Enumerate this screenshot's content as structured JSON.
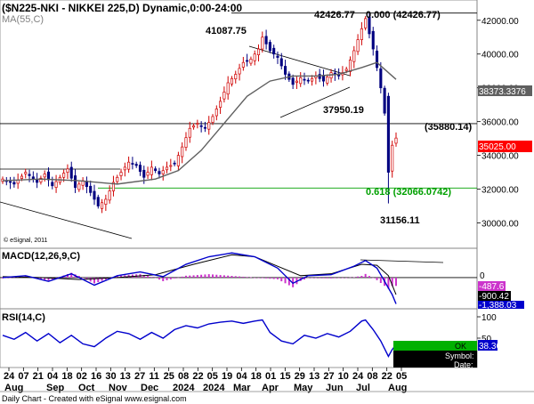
{
  "chart_data": {
    "type": "candlestick",
    "title": "($N225-NKI - NIKKEI 225,D) Dynamic,0:00-24:00",
    "ma_label": "MA(55,C)",
    "copyright": "© eSignal, 2011",
    "footer": "Daily Chart - Created with eSignal  www.esignal.com",
    "price_axis": {
      "ylim": [
        28500,
        43200
      ],
      "ticks": [
        "42000.00",
        "40000.00",
        "38000.00",
        "36000.00",
        "34000.00",
        "32000.00",
        "30000.00"
      ],
      "tick_values": [
        42000,
        40000,
        38000,
        36000,
        34000,
        32000,
        30000
      ]
    },
    "x_axis": {
      "day_labels": [
        "24",
        "07",
        "21",
        "04",
        "18",
        "02",
        "16",
        "30",
        "13",
        "27",
        "11",
        "25",
        "08",
        "22",
        "05",
        "19",
        "04",
        "18",
        "01",
        "15",
        "29",
        "13",
        "27",
        "10",
        "24",
        "08",
        "22",
        "05"
      ],
      "month_labels": [
        "Aug",
        "Sep",
        "Oct",
        "Nov",
        "Dec",
        "2024",
        "2024",
        "Mar",
        "Apr",
        "May",
        "Jun",
        "Jul",
        "Aug"
      ]
    },
    "close_points": [
      {
        "x": 0,
        "y": 32600
      },
      {
        "x": 3,
        "y": 32300
      },
      {
        "x": 6,
        "y": 33000
      },
      {
        "x": 9,
        "y": 32400
      },
      {
        "x": 11,
        "y": 32900
      },
      {
        "x": 13,
        "y": 32200
      },
      {
        "x": 15,
        "y": 32700
      },
      {
        "x": 17,
        "y": 33200
      },
      {
        "x": 19,
        "y": 32100
      },
      {
        "x": 21,
        "y": 32500
      },
      {
        "x": 23,
        "y": 31800
      },
      {
        "x": 25,
        "y": 31000
      },
      {
        "x": 27,
        "y": 31400
      },
      {
        "x": 29,
        "y": 32400
      },
      {
        "x": 31,
        "y": 33000
      },
      {
        "x": 33,
        "y": 33600
      },
      {
        "x": 35,
        "y": 33400
      },
      {
        "x": 37,
        "y": 32700
      },
      {
        "x": 39,
        "y": 33300
      },
      {
        "x": 41,
        "y": 32900
      },
      {
        "x": 43,
        "y": 33300
      },
      {
        "x": 45,
        "y": 33500
      },
      {
        "x": 47,
        "y": 34500
      },
      {
        "x": 49,
        "y": 35600
      },
      {
        "x": 51,
        "y": 35900
      },
      {
        "x": 53,
        "y": 35600
      },
      {
        "x": 55,
        "y": 36300
      },
      {
        "x": 57,
        "y": 37200
      },
      {
        "x": 59,
        "y": 38300
      },
      {
        "x": 61,
        "y": 38800
      },
      {
        "x": 63,
        "y": 39500
      },
      {
        "x": 65,
        "y": 39700
      },
      {
        "x": 67,
        "y": 40300
      },
      {
        "x": 68,
        "y": 41000
      },
      {
        "x": 70,
        "y": 40200
      },
      {
        "x": 72,
        "y": 39800
      },
      {
        "x": 74,
        "y": 38800
      },
      {
        "x": 76,
        "y": 38200
      },
      {
        "x": 78,
        "y": 38600
      },
      {
        "x": 80,
        "y": 38400
      },
      {
        "x": 82,
        "y": 38700
      },
      {
        "x": 84,
        "y": 38400
      },
      {
        "x": 86,
        "y": 38900
      },
      {
        "x": 88,
        "y": 38700
      },
      {
        "x": 90,
        "y": 39100
      },
      {
        "x": 92,
        "y": 40200
      },
      {
        "x": 94,
        "y": 41500
      },
      {
        "x": 95,
        "y": 42100
      },
      {
        "x": 96,
        "y": 41200
      },
      {
        "x": 97,
        "y": 40300
      },
      {
        "x": 98,
        "y": 39200
      },
      {
        "x": 99,
        "y": 38000
      },
      {
        "x": 100,
        "y": 36500
      },
      {
        "x": 101,
        "y": 33000
      },
      {
        "x": 102,
        "y": 34600
      },
      {
        "x": 103,
        "y": 35025
      }
    ],
    "ma_points": [
      {
        "x": 0,
        "y": 32500
      },
      {
        "x": 10,
        "y": 32600
      },
      {
        "x": 20,
        "y": 32500
      },
      {
        "x": 30,
        "y": 32300
      },
      {
        "x": 40,
        "y": 32600
      },
      {
        "x": 46,
        "y": 33100
      },
      {
        "x": 52,
        "y": 34300
      },
      {
        "x": 58,
        "y": 35900
      },
      {
        "x": 64,
        "y": 37500
      },
      {
        "x": 70,
        "y": 38400
      },
      {
        "x": 76,
        "y": 38700
      },
      {
        "x": 82,
        "y": 38700
      },
      {
        "x": 88,
        "y": 38800
      },
      {
        "x": 94,
        "y": 39200
      },
      {
        "x": 98,
        "y": 39500
      },
      {
        "x": 100,
        "y": 39100
      },
      {
        "x": 103,
        "y": 38500
      }
    ],
    "levels": [
      {
        "label": "0.000 (42426.77)",
        "value": 42426.77
      },
      {
        "label": "(35880.14)",
        "value": 35880.14
      },
      {
        "label": "0.618 (32066.0742)",
        "value": 32066.0742
      }
    ],
    "annotations": [
      "42426.77",
      "41087.75",
      "37950.19",
      "31156.11"
    ],
    "last_price_labels": [
      "38373.3376",
      "35025.00"
    ],
    "macd": {
      "label": "MACD(12,26,9,C)",
      "ylim": [
        -1600,
        1500
      ],
      "zero_label": "0",
      "value_labels": [
        "-487.6",
        "-900.42",
        "-1,388.03"
      ],
      "macd_points": [
        {
          "x": 0,
          "y": 0
        },
        {
          "x": 6,
          "y": 100
        },
        {
          "x": 12,
          "y": -200
        },
        {
          "x": 18,
          "y": 200
        },
        {
          "x": 24,
          "y": -400
        },
        {
          "x": 30,
          "y": 100
        },
        {
          "x": 36,
          "y": 300
        },
        {
          "x": 42,
          "y": 50
        },
        {
          "x": 48,
          "y": 700
        },
        {
          "x": 54,
          "y": 1100
        },
        {
          "x": 60,
          "y": 1300
        },
        {
          "x": 66,
          "y": 1100
        },
        {
          "x": 72,
          "y": 500
        },
        {
          "x": 76,
          "y": -300
        },
        {
          "x": 80,
          "y": 100
        },
        {
          "x": 86,
          "y": 150
        },
        {
          "x": 92,
          "y": 600
        },
        {
          "x": 95,
          "y": 900
        },
        {
          "x": 98,
          "y": 500
        },
        {
          "x": 100,
          "y": -200
        },
        {
          "x": 102,
          "y": -900
        },
        {
          "x": 103,
          "y": -1388
        }
      ],
      "signal_points": [
        {
          "x": 0,
          "y": 50
        },
        {
          "x": 10,
          "y": 0
        },
        {
          "x": 20,
          "y": -100
        },
        {
          "x": 30,
          "y": 0
        },
        {
          "x": 40,
          "y": 150
        },
        {
          "x": 50,
          "y": 700
        },
        {
          "x": 60,
          "y": 1200
        },
        {
          "x": 66,
          "y": 1100
        },
        {
          "x": 72,
          "y": 600
        },
        {
          "x": 78,
          "y": 100
        },
        {
          "x": 86,
          "y": 200
        },
        {
          "x": 94,
          "y": 700
        },
        {
          "x": 98,
          "y": 650
        },
        {
          "x": 101,
          "y": 100
        },
        {
          "x": 103,
          "y": -900
        }
      ]
    },
    "rsi": {
      "label": "RSI(14,C)",
      "ylim": [
        0,
        100
      ],
      "tick_labels": [
        "100",
        "50"
      ],
      "tick_values": [
        100,
        50
      ],
      "value_label": "38.36",
      "points": [
        {
          "x": 0,
          "y": 55
        },
        {
          "x": 3,
          "y": 48
        },
        {
          "x": 6,
          "y": 60
        },
        {
          "x": 9,
          "y": 45
        },
        {
          "x": 12,
          "y": 58
        },
        {
          "x": 15,
          "y": 42
        },
        {
          "x": 18,
          "y": 55
        },
        {
          "x": 21,
          "y": 40
        },
        {
          "x": 24,
          "y": 35
        },
        {
          "x": 27,
          "y": 50
        },
        {
          "x": 30,
          "y": 62
        },
        {
          "x": 33,
          "y": 58
        },
        {
          "x": 36,
          "y": 48
        },
        {
          "x": 39,
          "y": 60
        },
        {
          "x": 42,
          "y": 50
        },
        {
          "x": 45,
          "y": 65
        },
        {
          "x": 48,
          "y": 72
        },
        {
          "x": 51,
          "y": 68
        },
        {
          "x": 54,
          "y": 75
        },
        {
          "x": 57,
          "y": 78
        },
        {
          "x": 60,
          "y": 80
        },
        {
          "x": 63,
          "y": 76
        },
        {
          "x": 66,
          "y": 80
        },
        {
          "x": 68,
          "y": 82
        },
        {
          "x": 70,
          "y": 60
        },
        {
          "x": 73,
          "y": 45
        },
        {
          "x": 76,
          "y": 40
        },
        {
          "x": 79,
          "y": 55
        },
        {
          "x": 82,
          "y": 50
        },
        {
          "x": 85,
          "y": 58
        },
        {
          "x": 88,
          "y": 52
        },
        {
          "x": 91,
          "y": 62
        },
        {
          "x": 94,
          "y": 80
        },
        {
          "x": 95,
          "y": 82
        },
        {
          "x": 97,
          "y": 65
        },
        {
          "x": 99,
          "y": 45
        },
        {
          "x": 101,
          "y": 18
        },
        {
          "x": 102,
          "y": 30
        },
        {
          "x": 103,
          "y": 38.36
        }
      ]
    },
    "status_box": {
      "ok": "OK",
      "symbol": "Symbol:",
      "date": "Date:"
    }
  },
  "colors": {
    "up": "#d00000",
    "down": "#000080",
    "ma": "#606060",
    "macd": "#0000cc",
    "signal": "#000000",
    "hist": "#cc33cc",
    "level_black": "#000000",
    "level_green": "#00a000",
    "rsi": "#0000cc",
    "price_tag": "#ff0000",
    "ok_green": "#00b000"
  }
}
